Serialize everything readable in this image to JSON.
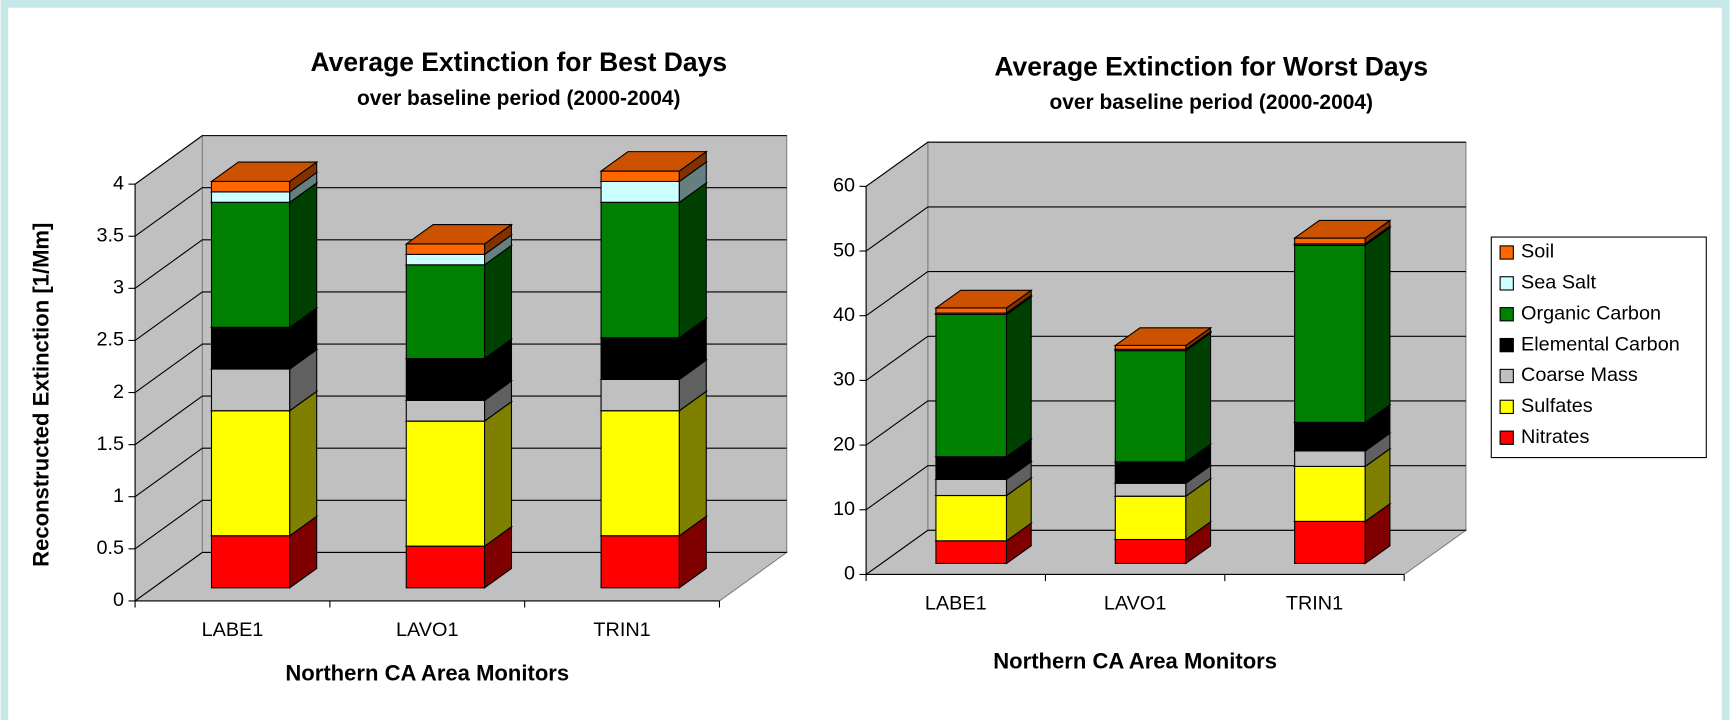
{
  "chart_data": [
    {
      "type": "bar3d_stacked",
      "title": "Average Extinction for Best Days",
      "subtitle": "over baseline period (2000-2004)",
      "x_label": "Northern CA Area Monitors",
      "y_label": "Reconstructed Extinction [1/Mm]",
      "categories": [
        "LABE1",
        "LAVO1",
        "TRIN1"
      ],
      "series": [
        {
          "color": "#ff0000",
          "values": [
            0.5,
            0.4,
            0.5
          ]
        },
        {
          "color": "#ffff00",
          "values": [
            1.2,
            1.2,
            1.2
          ]
        },
        {
          "color": "#c0c0c0",
          "values": [
            0.4,
            0.2,
            0.3
          ]
        },
        {
          "color": "#000000",
          "values": [
            0.4,
            0.4,
            0.4
          ]
        },
        {
          "color": "#008000",
          "values": [
            1.2,
            0.9,
            1.3
          ]
        },
        {
          "color": "#ccffff",
          "values": [
            0.1,
            0.1,
            0.2
          ]
        },
        {
          "color": "#ff6600",
          "values": [
            0.1,
            0.1,
            0.1
          ]
        }
      ],
      "ylim": [
        0,
        4
      ],
      "yticks": [
        0,
        0.5,
        1,
        1.5,
        2,
        2.5,
        3,
        3.5,
        4
      ],
      "grid": true
    },
    {
      "type": "bar3d_stacked",
      "title": "Average Extinction for Worst Days",
      "subtitle": "over baseline period (2000-2004)",
      "x_label": "Northern CA Area Monitors",
      "categories": [
        "LABE1",
        "LAVO1",
        "TRIN1"
      ],
      "series": [
        {
          "name": "Nitrates",
          "color": "#ff0000",
          "values": [
            3.5,
            3.7,
            6.5
          ]
        },
        {
          "name": "Sulfates",
          "color": "#ffff00",
          "values": [
            7,
            6.7,
            8.5
          ]
        },
        {
          "name": "Coarse Mass",
          "color": "#c0c0c0",
          "values": [
            2.5,
            2,
            2.4
          ]
        },
        {
          "name": "Elemental Carbon",
          "color": "#000000",
          "values": [
            3.5,
            3.3,
            4.4
          ]
        },
        {
          "name": "Organic Carbon",
          "color": "#008000",
          "values": [
            22,
            17.2,
            27.4
          ]
        },
        {
          "name": "Sea Salt",
          "color": "#ccffff",
          "values": [
            0.2,
            0.2,
            0.2
          ]
        },
        {
          "name": "Soil",
          "color": "#ff6600",
          "values": [
            0.8,
            0.6,
            0.9
          ]
        }
      ],
      "ylim": [
        0,
        60
      ],
      "yticks": [
        0,
        10,
        20,
        30,
        40,
        50,
        60
      ],
      "grid": true,
      "legend": "right"
    }
  ]
}
